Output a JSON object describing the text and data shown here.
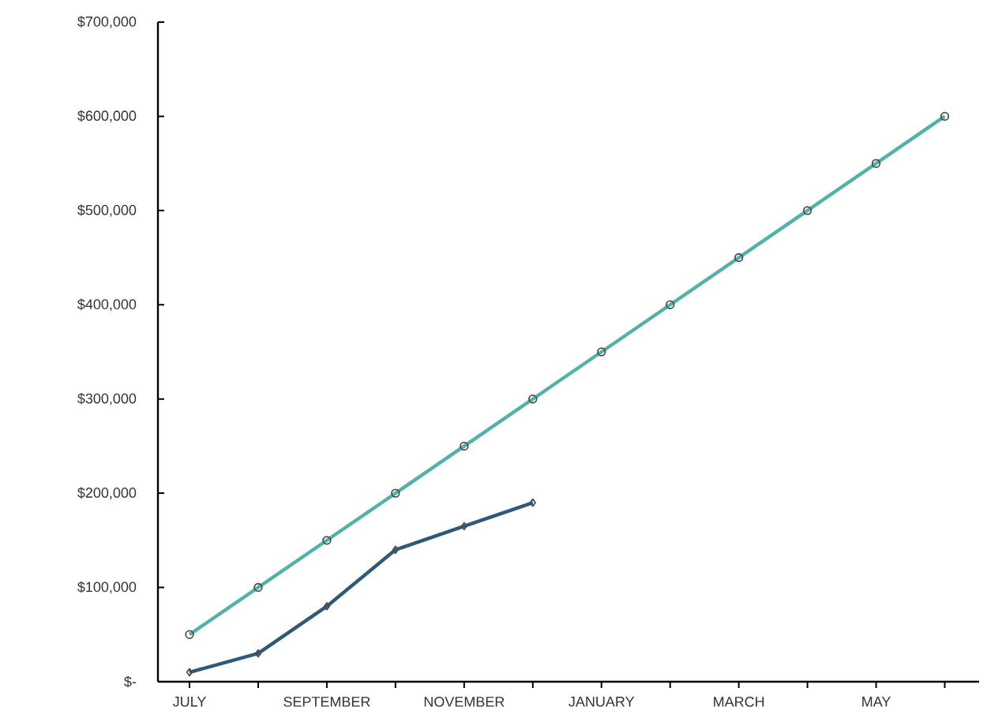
{
  "chart_data": {
    "type": "line",
    "categories": [
      "JULY",
      null,
      "SEPTEMBER",
      null,
      "NOVEMBER",
      null,
      "JANUARY",
      null,
      "MARCH",
      null,
      "MAY",
      null
    ],
    "series": [
      {
        "color": "#4fb3a8",
        "marker": "circle",
        "values": [
          50000,
          100000,
          150000,
          200000,
          250000,
          300000,
          350000,
          400000,
          450000,
          500000,
          550000,
          600000
        ]
      },
      {
        "color": "#2e5a7a",
        "marker": "diamond",
        "values": [
          10000,
          30000,
          80000,
          140000,
          165000,
          190000,
          null,
          null,
          null,
          null,
          null,
          null
        ]
      }
    ],
    "ylim": [
      0,
      700000
    ],
    "yticks": [
      {
        "value": 0,
        "label": "$-"
      },
      {
        "value": 100000,
        "label": "$100,000"
      },
      {
        "value": 200000,
        "label": "$200,000"
      },
      {
        "value": 300000,
        "label": "$300,000"
      },
      {
        "value": 400000,
        "label": "$400,000"
      },
      {
        "value": 500000,
        "label": "$500,000"
      },
      {
        "value": 600000,
        "label": "$600,000"
      },
      {
        "value": 700000,
        "label": "$700,000"
      }
    ],
    "grid": false,
    "line_style": "solid"
  }
}
